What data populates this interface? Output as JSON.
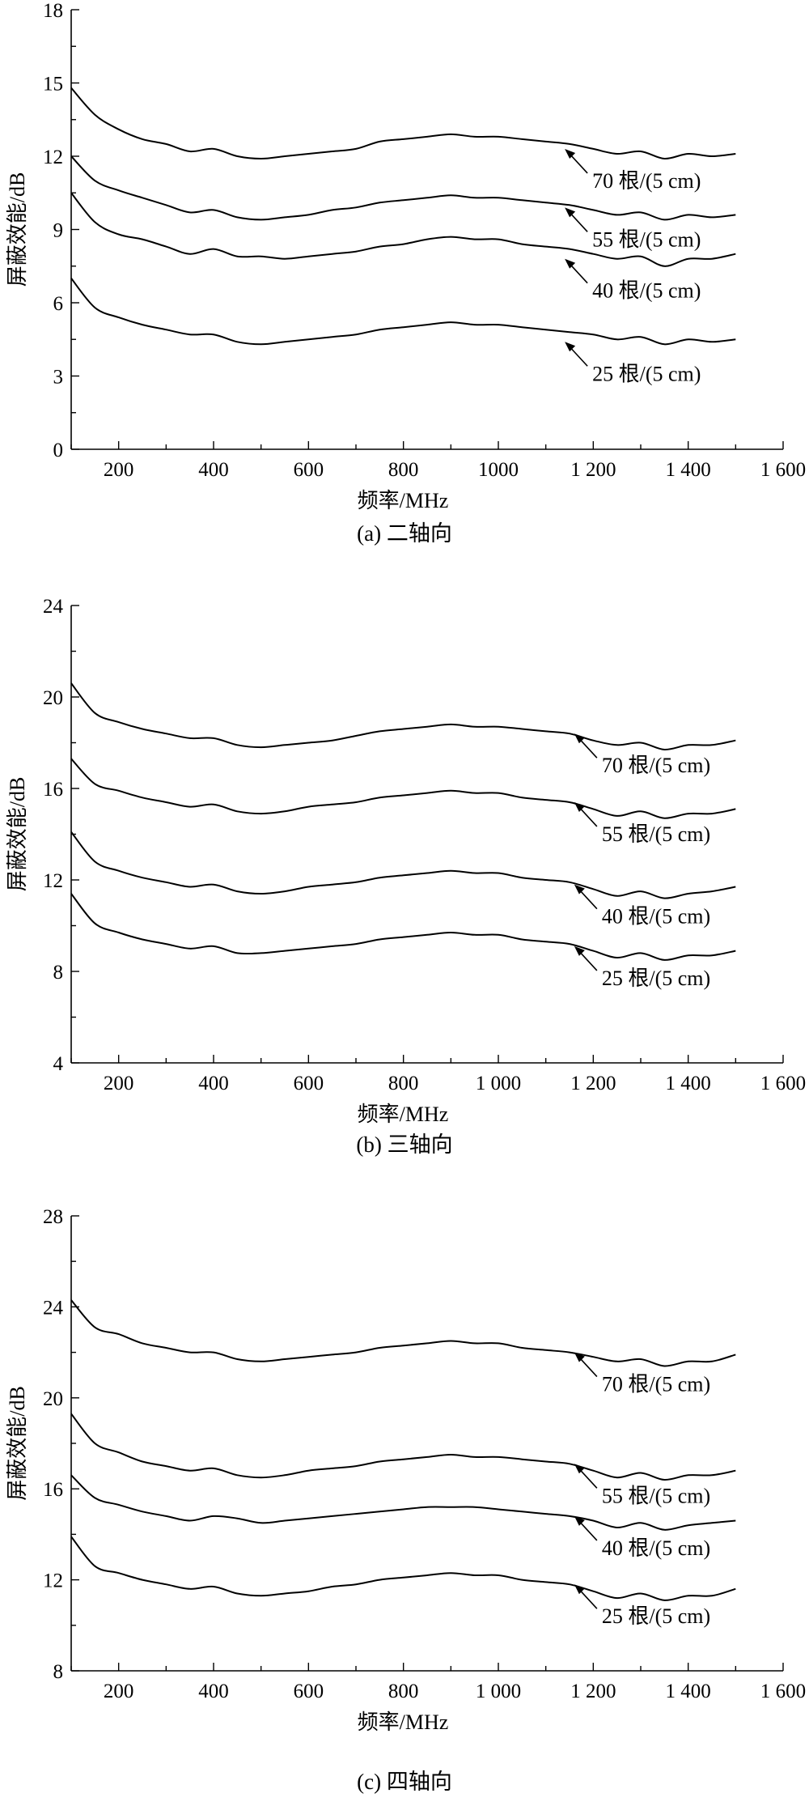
{
  "chart_data": [
    {
      "type": "line",
      "caption": "(a) 二轴向",
      "xlabel": "频率/MHz",
      "ylabel": "屏蔽效能/dB",
      "xlim": [
        100,
        1600
      ],
      "ylim": [
        0,
        18
      ],
      "xticks": [
        200,
        400,
        600,
        800,
        1000,
        1200,
        1400,
        1600
      ],
      "xtick_labels": [
        "200",
        "400",
        "600",
        "800",
        "1000",
        "1 200",
        "1 400",
        "1 600"
      ],
      "yticks": [
        0,
        3,
        6,
        9,
        12,
        15,
        18
      ],
      "ytick_labels": [
        "0",
        "3",
        "6",
        "9",
        "12",
        "15",
        "18"
      ],
      "series": [
        {
          "name": "70 根/(5 cm)",
          "x": [
            100,
            150,
            200,
            250,
            300,
            350,
            400,
            450,
            500,
            550,
            600,
            650,
            700,
            750,
            800,
            850,
            900,
            950,
            1000,
            1050,
            1100,
            1150,
            1200,
            1250,
            1300,
            1350,
            1400,
            1450,
            1500
          ],
          "y": [
            14.8,
            13.7,
            13.1,
            12.7,
            12.5,
            12.2,
            12.3,
            12.0,
            11.9,
            12.0,
            12.1,
            12.2,
            12.3,
            12.6,
            12.7,
            12.8,
            12.9,
            12.8,
            12.8,
            12.7,
            12.6,
            12.5,
            12.3,
            12.1,
            12.2,
            11.9,
            12.1,
            12.0,
            12.1
          ],
          "label_x": 1140,
          "label_y": 12.3
        },
        {
          "name": "55 根/(5 cm)",
          "x": [
            100,
            150,
            200,
            250,
            300,
            350,
            400,
            450,
            500,
            550,
            600,
            650,
            700,
            750,
            800,
            850,
            900,
            950,
            1000,
            1050,
            1100,
            1150,
            1200,
            1250,
            1300,
            1350,
            1400,
            1450,
            1500
          ],
          "y": [
            12.0,
            11.0,
            10.6,
            10.3,
            10.0,
            9.7,
            9.8,
            9.5,
            9.4,
            9.5,
            9.6,
            9.8,
            9.9,
            10.1,
            10.2,
            10.3,
            10.4,
            10.3,
            10.3,
            10.2,
            10.1,
            10.0,
            9.8,
            9.6,
            9.7,
            9.4,
            9.6,
            9.5,
            9.6
          ],
          "label_x": 1140,
          "label_y": 9.9
        },
        {
          "name": "40 根/(5 cm)",
          "x": [
            100,
            150,
            200,
            250,
            300,
            350,
            400,
            450,
            500,
            550,
            600,
            650,
            700,
            750,
            800,
            850,
            900,
            950,
            1000,
            1050,
            1100,
            1150,
            1200,
            1250,
            1300,
            1350,
            1400,
            1450,
            1500
          ],
          "y": [
            10.5,
            9.3,
            8.8,
            8.6,
            8.3,
            8.0,
            8.2,
            7.9,
            7.9,
            7.8,
            7.9,
            8.0,
            8.1,
            8.3,
            8.4,
            8.6,
            8.7,
            8.6,
            8.6,
            8.4,
            8.3,
            8.2,
            8.0,
            7.8,
            7.9,
            7.5,
            7.8,
            7.8,
            8.0
          ],
          "label_x": 1140,
          "label_y": 7.8
        },
        {
          "name": "25 根/(5 cm)",
          "x": [
            100,
            150,
            200,
            250,
            300,
            350,
            400,
            450,
            500,
            550,
            600,
            650,
            700,
            750,
            800,
            850,
            900,
            950,
            1000,
            1050,
            1100,
            1150,
            1200,
            1250,
            1300,
            1350,
            1400,
            1450,
            1500
          ],
          "y": [
            7.0,
            5.8,
            5.4,
            5.1,
            4.9,
            4.7,
            4.7,
            4.4,
            4.3,
            4.4,
            4.5,
            4.6,
            4.7,
            4.9,
            5.0,
            5.1,
            5.2,
            5.1,
            5.1,
            5.0,
            4.9,
            4.8,
            4.7,
            4.5,
            4.6,
            4.3,
            4.5,
            4.4,
            4.5
          ],
          "label_x": 1140,
          "label_y": 4.4
        }
      ]
    },
    {
      "type": "line",
      "caption": "(b) 三轴向",
      "xlabel": "频率/MHz",
      "ylabel": "屏蔽效能/dB",
      "xlim": [
        100,
        1600
      ],
      "ylim": [
        4,
        24
      ],
      "xticks": [
        200,
        400,
        600,
        800,
        1000,
        1200,
        1400,
        1600
      ],
      "xtick_labels": [
        "200",
        "400",
        "600",
        "800",
        "1 000",
        "1 200",
        "1 400",
        "1 600"
      ],
      "yticks": [
        4,
        8,
        12,
        16,
        20,
        24
      ],
      "ytick_labels": [
        "4",
        "8",
        "12",
        "16",
        "20",
        "24"
      ],
      "series": [
        {
          "name": "70 根/(5 cm)",
          "x": [
            100,
            150,
            200,
            250,
            300,
            350,
            400,
            450,
            500,
            550,
            600,
            650,
            700,
            750,
            800,
            850,
            900,
            950,
            1000,
            1050,
            1100,
            1150,
            1200,
            1250,
            1300,
            1350,
            1400,
            1450,
            1500
          ],
          "y": [
            20.6,
            19.3,
            18.9,
            18.6,
            18.4,
            18.2,
            18.2,
            17.9,
            17.8,
            17.9,
            18.0,
            18.1,
            18.3,
            18.5,
            18.6,
            18.7,
            18.8,
            18.7,
            18.7,
            18.6,
            18.5,
            18.4,
            18.1,
            17.9,
            18.0,
            17.7,
            17.9,
            17.9,
            18.1
          ],
          "label_x": 1160,
          "label_y": 18.4
        },
        {
          "name": "55 根/(5 cm)",
          "x": [
            100,
            150,
            200,
            250,
            300,
            350,
            400,
            450,
            500,
            550,
            600,
            650,
            700,
            750,
            800,
            850,
            900,
            950,
            1000,
            1050,
            1100,
            1150,
            1200,
            1250,
            1300,
            1350,
            1400,
            1450,
            1500
          ],
          "y": [
            17.3,
            16.2,
            15.9,
            15.6,
            15.4,
            15.2,
            15.3,
            15.0,
            14.9,
            15.0,
            15.2,
            15.3,
            15.4,
            15.6,
            15.7,
            15.8,
            15.9,
            15.8,
            15.8,
            15.6,
            15.5,
            15.4,
            15.1,
            14.8,
            15.0,
            14.7,
            14.9,
            14.9,
            15.1
          ],
          "label_x": 1160,
          "label_y": 15.4
        },
        {
          "name": "40 根/(5 cm)",
          "x": [
            100,
            150,
            200,
            250,
            300,
            350,
            400,
            450,
            500,
            550,
            600,
            650,
            700,
            750,
            800,
            850,
            900,
            950,
            1000,
            1050,
            1100,
            1150,
            1200,
            1250,
            1300,
            1350,
            1400,
            1450,
            1500
          ],
          "y": [
            14.1,
            12.8,
            12.4,
            12.1,
            11.9,
            11.7,
            11.8,
            11.5,
            11.4,
            11.5,
            11.7,
            11.8,
            11.9,
            12.1,
            12.2,
            12.3,
            12.4,
            12.3,
            12.3,
            12.1,
            12.0,
            11.9,
            11.6,
            11.3,
            11.5,
            11.2,
            11.4,
            11.5,
            11.7
          ],
          "label_x": 1160,
          "label_y": 11.8
        },
        {
          "name": "25 根/(5 cm)",
          "x": [
            100,
            150,
            200,
            250,
            300,
            350,
            400,
            450,
            500,
            550,
            600,
            650,
            700,
            750,
            800,
            850,
            900,
            950,
            1000,
            1050,
            1100,
            1150,
            1200,
            1250,
            1300,
            1350,
            1400,
            1450,
            1500
          ],
          "y": [
            11.4,
            10.1,
            9.7,
            9.4,
            9.2,
            9.0,
            9.1,
            8.8,
            8.8,
            8.9,
            9.0,
            9.1,
            9.2,
            9.4,
            9.5,
            9.6,
            9.7,
            9.6,
            9.6,
            9.4,
            9.3,
            9.2,
            8.9,
            8.6,
            8.8,
            8.5,
            8.7,
            8.7,
            8.9
          ],
          "label_x": 1160,
          "label_y": 9.1
        }
      ]
    },
    {
      "type": "line",
      "caption": "(c) 四轴向",
      "xlabel": "频率/MHz",
      "ylabel": "屏蔽效能/dB",
      "xlim": [
        100,
        1600
      ],
      "ylim": [
        8,
        28
      ],
      "xticks": [
        200,
        400,
        600,
        800,
        1000,
        1200,
        1400,
        1600
      ],
      "xtick_labels": [
        "200",
        "400",
        "600",
        "800",
        "1 000",
        "1 200",
        "1 400",
        "1 600"
      ],
      "yticks": [
        8,
        12,
        16,
        20,
        24,
        28
      ],
      "ytick_labels": [
        "8",
        "12",
        "16",
        "20",
        "24",
        "28"
      ],
      "series": [
        {
          "name": "70 根/(5 cm)",
          "x": [
            100,
            150,
            200,
            250,
            300,
            350,
            400,
            450,
            500,
            550,
            600,
            650,
            700,
            750,
            800,
            850,
            900,
            950,
            1000,
            1050,
            1100,
            1150,
            1200,
            1250,
            1300,
            1350,
            1400,
            1450,
            1500
          ],
          "y": [
            24.3,
            23.1,
            22.8,
            22.4,
            22.2,
            22.0,
            22.0,
            21.7,
            21.6,
            21.7,
            21.8,
            21.9,
            22.0,
            22.2,
            22.3,
            22.4,
            22.5,
            22.4,
            22.4,
            22.2,
            22.1,
            22.0,
            21.8,
            21.6,
            21.7,
            21.4,
            21.6,
            21.6,
            21.9
          ],
          "label_x": 1160,
          "label_y": 22.0
        },
        {
          "name": "55 根/(5 cm)",
          "x": [
            100,
            150,
            200,
            250,
            300,
            350,
            400,
            450,
            500,
            550,
            600,
            650,
            700,
            750,
            800,
            850,
            900,
            950,
            1000,
            1050,
            1100,
            1150,
            1200,
            1250,
            1300,
            1350,
            1400,
            1450,
            1500
          ],
          "y": [
            19.3,
            18.0,
            17.6,
            17.2,
            17.0,
            16.8,
            16.9,
            16.6,
            16.5,
            16.6,
            16.8,
            16.9,
            17.0,
            17.2,
            17.3,
            17.4,
            17.5,
            17.4,
            17.4,
            17.3,
            17.2,
            17.1,
            16.8,
            16.5,
            16.7,
            16.4,
            16.6,
            16.6,
            16.8
          ],
          "label_x": 1160,
          "label_y": 17.1
        },
        {
          "name": "40 根/(5 cm)",
          "x": [
            100,
            150,
            200,
            250,
            300,
            350,
            400,
            450,
            500,
            550,
            600,
            650,
            700,
            750,
            800,
            850,
            900,
            950,
            1000,
            1050,
            1100,
            1150,
            1200,
            1250,
            1300,
            1350,
            1400,
            1450,
            1500
          ],
          "y": [
            16.6,
            15.6,
            15.3,
            15.0,
            14.8,
            14.6,
            14.8,
            14.7,
            14.5,
            14.6,
            14.7,
            14.8,
            14.9,
            15.0,
            15.1,
            15.2,
            15.2,
            15.2,
            15.1,
            15.0,
            14.9,
            14.8,
            14.6,
            14.3,
            14.5,
            14.2,
            14.4,
            14.5,
            14.6
          ],
          "label_x": 1160,
          "label_y": 14.8
        },
        {
          "name": "25 根/(5 cm)",
          "x": [
            100,
            150,
            200,
            250,
            300,
            350,
            400,
            450,
            500,
            550,
            600,
            650,
            700,
            750,
            800,
            850,
            900,
            950,
            1000,
            1050,
            1100,
            1150,
            1200,
            1250,
            1300,
            1350,
            1400,
            1450,
            1500
          ],
          "y": [
            13.9,
            12.6,
            12.3,
            12.0,
            11.8,
            11.6,
            11.7,
            11.4,
            11.3,
            11.4,
            11.5,
            11.7,
            11.8,
            12.0,
            12.1,
            12.2,
            12.3,
            12.2,
            12.2,
            12.0,
            11.9,
            11.8,
            11.5,
            11.2,
            11.4,
            11.1,
            11.3,
            11.3,
            11.6
          ],
          "label_x": 1160,
          "label_y": 11.8
        }
      ]
    }
  ]
}
